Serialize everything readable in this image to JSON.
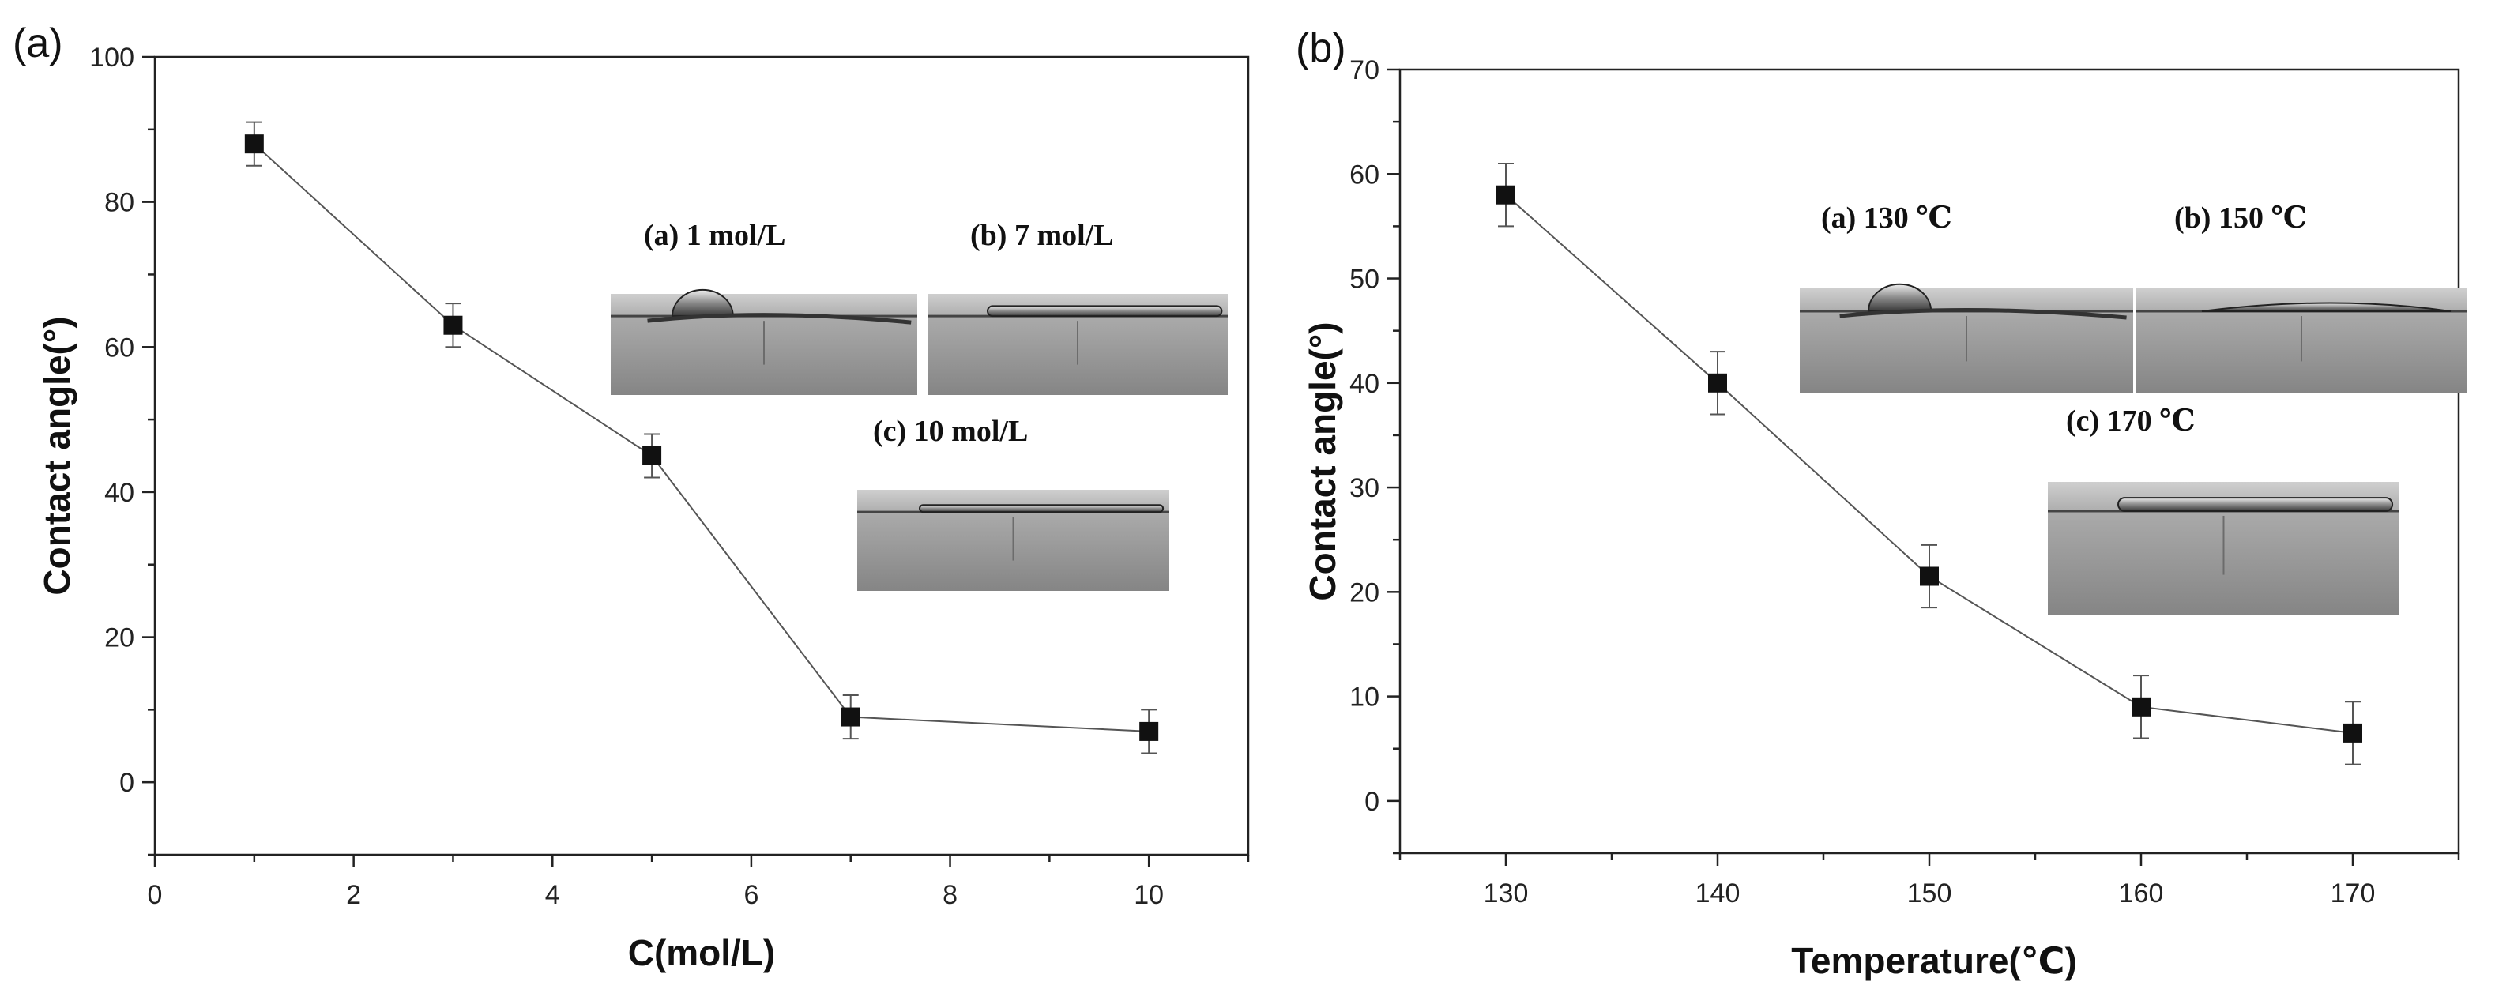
{
  "chart_data": [
    {
      "type": "line",
      "panel_label": "(a)",
      "title": "",
      "xlabel": "C(mol/L)",
      "ylabel": "Contact angle(°)",
      "xlim": [
        0,
        11
      ],
      "ylim": [
        -10,
        100
      ],
      "xticks": [
        "0",
        "2",
        "4",
        "6",
        "8",
        "10"
      ],
      "yticks": [
        "0",
        "20",
        "40",
        "60",
        "80",
        "100"
      ],
      "grid": false,
      "series": [
        {
          "name": "Contact angle",
          "x": [
            1,
            3,
            5,
            7,
            10
          ],
          "values": [
            88,
            63,
            45,
            9,
            7
          ],
          "errors": [
            3,
            3,
            3,
            3,
            3
          ]
        }
      ],
      "insets": [
        {
          "label": "(a) 1 mol/L",
          "drop": "cap"
        },
        {
          "label": "(b) 7 mol/L",
          "drop": "flat"
        },
        {
          "label": "(c) 10 mol/L",
          "drop": "thin"
        }
      ]
    },
    {
      "type": "line",
      "panel_label": "(b)",
      "title": "",
      "xlabel": "Temperature(℃)",
      "ylabel": "Contact angle(°)",
      "xlim": [
        125,
        175
      ],
      "ylim": [
        -5,
        70
      ],
      "xticks": [
        "130",
        "140",
        "150",
        "160",
        "170"
      ],
      "yticks": [
        "0",
        "10",
        "20",
        "30",
        "40",
        "50",
        "60",
        "70"
      ],
      "grid": false,
      "series": [
        {
          "name": "Contact angle",
          "x": [
            130,
            140,
            150,
            160,
            170
          ],
          "values": [
            58,
            40,
            21.5,
            9,
            6.5
          ],
          "errors": [
            3,
            3,
            3,
            3,
            3
          ]
        }
      ],
      "insets": [
        {
          "label": "(a) 130 ℃",
          "drop": "cap"
        },
        {
          "label": "(b) 150 ℃",
          "drop": "low"
        },
        {
          "label": "(c) 170 ℃",
          "drop": "flat"
        }
      ]
    }
  ]
}
